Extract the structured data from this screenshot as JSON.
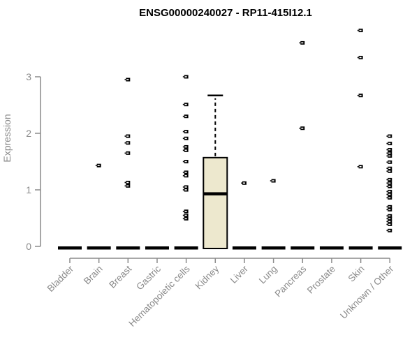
{
  "chart_data": {
    "type": "boxplot",
    "title": "ENSG00000240027 - RP11-415I12.1",
    "xlabel": "",
    "ylabel": "Expression",
    "ylim": [
      0,
      3
    ],
    "yticks": [
      0,
      1,
      2,
      3
    ],
    "grid": false,
    "legend": null,
    "categories": [
      "Bladder",
      "Brain",
      "Breast",
      "Gastric",
      "Hematopoietic cells",
      "Kidney",
      "Liver",
      "Lung",
      "Pancreas",
      "Prostate",
      "Skin",
      "Unknown / Other"
    ],
    "boxes": [
      {
        "category": "Bladder",
        "q1": 0,
        "median": 0,
        "q3": 0,
        "whisker_low": 0,
        "whisker_high": 0,
        "points": []
      },
      {
        "category": "Brain",
        "q1": 0,
        "median": 0,
        "q3": 0,
        "whisker_low": 0,
        "whisker_high": 0,
        "points": [
          1.43
        ]
      },
      {
        "category": "Breast",
        "q1": 0,
        "median": 0,
        "q3": 0,
        "whisker_low": 0,
        "whisker_high": 0,
        "points": [
          2.95,
          1.95,
          1.83,
          1.65,
          1.13,
          1.07
        ]
      },
      {
        "category": "Gastric",
        "q1": 0,
        "median": 0,
        "q3": 0,
        "whisker_low": 0,
        "whisker_high": 0,
        "points": []
      },
      {
        "category": "Hematopoietic cells",
        "q1": 0,
        "median": 0,
        "q3": 0,
        "whisker_low": 0,
        "whisker_high": 0,
        "points": [
          3.0,
          2.51,
          2.3,
          2.03,
          1.91,
          1.76,
          1.7,
          1.5,
          1.31,
          1.25,
          1.05,
          1.0,
          0.62,
          0.55,
          0.49
        ]
      },
      {
        "category": "Kidney",
        "q1": 0,
        "median": 0.93,
        "q3": 1.57,
        "whisker_low": 0,
        "whisker_high": 2.67,
        "points": []
      },
      {
        "category": "Liver",
        "q1": 0,
        "median": 0,
        "q3": 0,
        "whisker_low": 0,
        "whisker_high": 0,
        "points": [
          1.12
        ]
      },
      {
        "category": "Lung",
        "q1": 0,
        "median": 0,
        "q3": 0,
        "whisker_low": 0,
        "whisker_high": 0,
        "points": [
          1.16
        ]
      },
      {
        "category": "Pancreas",
        "q1": 0,
        "median": 0,
        "q3": 0,
        "whisker_low": 0,
        "whisker_high": 0,
        "points": [
          3.6,
          2.09
        ]
      },
      {
        "category": "Prostate",
        "q1": 0,
        "median": 0,
        "q3": 0,
        "whisker_low": 0,
        "whisker_high": 0,
        "points": []
      },
      {
        "category": "Skin",
        "q1": 0,
        "median": 0,
        "q3": 0,
        "whisker_low": 0,
        "whisker_high": 0,
        "points": [
          3.82,
          3.34,
          2.67,
          1.41
        ]
      },
      {
        "category": "Unknown / Other",
        "q1": 0,
        "median": 0,
        "q3": 0,
        "whisker_low": 0,
        "whisker_high": 0,
        "points": [
          1.95,
          1.82,
          1.71,
          1.65,
          1.6,
          1.49,
          1.38,
          1.33,
          1.18,
          1.12,
          1.06,
          0.97,
          0.92,
          0.86,
          0.7,
          0.65,
          0.54,
          0.49,
          0.44,
          0.39,
          0.28
        ]
      }
    ],
    "colors": {
      "box_fill": "#ede8ce",
      "box_border": "#000000",
      "median": "#000000",
      "point": "#000000",
      "axis": "#8a8a8a",
      "axis_text": "#8a8a8a",
      "title_text": "#000000",
      "background": "#ffffff"
    }
  }
}
